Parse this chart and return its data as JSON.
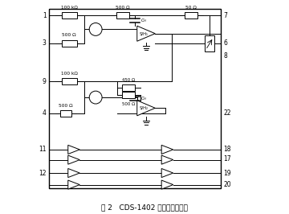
{
  "title": "图 2   CDS-1402 的功能原理框图",
  "fig_num": "图 2",
  "fig_desc": "CDS-1402 的功能原理框图",
  "lw": 0.7,
  "border": [
    0.05,
    0.12,
    0.86,
    0.96
  ],
  "pins_left": {
    "1": 0.93,
    "3": 0.8,
    "9": 0.62,
    "4": 0.47,
    "11": 0.3,
    "12": 0.19
  },
  "pins_right": {
    "7": 0.93,
    "6": 0.8,
    "8": 0.74,
    "22": 0.47,
    "18": 0.3,
    "17": 0.255,
    "19": 0.19,
    "20": 0.135
  }
}
